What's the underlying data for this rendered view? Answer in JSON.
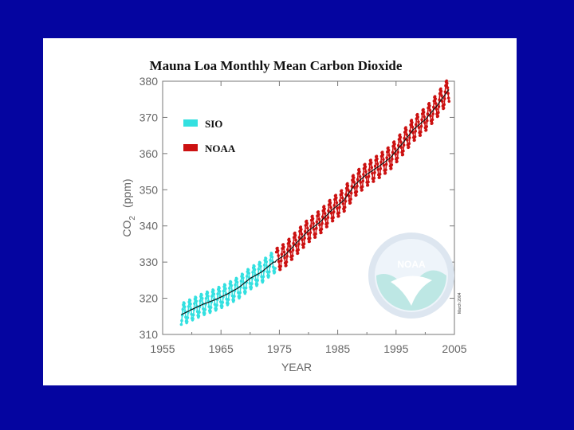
{
  "colors": {
    "slide_background": "#0505a0",
    "panel_background": "#ffffff",
    "sio": "#33e0e0",
    "noaa": "#cc1111",
    "trend": "#111111",
    "axis": "#777777"
  },
  "logo": {
    "text": "NOAA",
    "caption": "March 2004"
  },
  "chart_data": {
    "type": "scatter",
    "title": "Mauna Loa Monthly Mean Carbon Dioxide",
    "xlabel": "YEAR",
    "ylabel": "CO2  (ppm)",
    "ylabel_main": "CO",
    "ylabel_sub": "2",
    "ylabel_unit": "(ppm)",
    "xlim": [
      1955,
      2005
    ],
    "ylim": [
      310,
      380
    ],
    "xticks": [
      1955,
      1965,
      1975,
      1985,
      1995,
      2005
    ],
    "yticks": [
      310,
      320,
      330,
      340,
      350,
      360,
      370,
      380
    ],
    "legend_position": "top-left",
    "series": [
      {
        "name": "SIO",
        "color": "#33e0e0",
        "x_start": 1958.2,
        "x_end": 1974.3,
        "annual_means": [
          [
            1958,
            315.3
          ],
          [
            1960,
            316.9
          ],
          [
            1962,
            318.4
          ],
          [
            1964,
            319.6
          ],
          [
            1966,
            321.1
          ],
          [
            1968,
            322.9
          ],
          [
            1970,
            325.5
          ],
          [
            1972,
            327.3
          ],
          [
            1974,
            330.0
          ]
        ],
        "seasonal_amplitude": 3.0
      },
      {
        "name": "NOAA",
        "color": "#cc1111",
        "x_start": 1974.5,
        "x_end": 2004.1,
        "annual_means": [
          [
            1974,
            330.0
          ],
          [
            1976,
            332.0
          ],
          [
            1978,
            335.4
          ],
          [
            1980,
            338.7
          ],
          [
            1982,
            341.1
          ],
          [
            1984,
            344.4
          ],
          [
            1986,
            347.0
          ],
          [
            1988,
            351.5
          ],
          [
            1990,
            354.3
          ],
          [
            1992,
            356.4
          ],
          [
            1994,
            358.8
          ],
          [
            1996,
            362.6
          ],
          [
            1998,
            366.7
          ],
          [
            2000,
            369.4
          ],
          [
            2002,
            373.2
          ],
          [
            2004,
            377.6
          ]
        ],
        "seasonal_amplitude": 3.3
      }
    ],
    "trend_line": "annual running mean (black)"
  }
}
